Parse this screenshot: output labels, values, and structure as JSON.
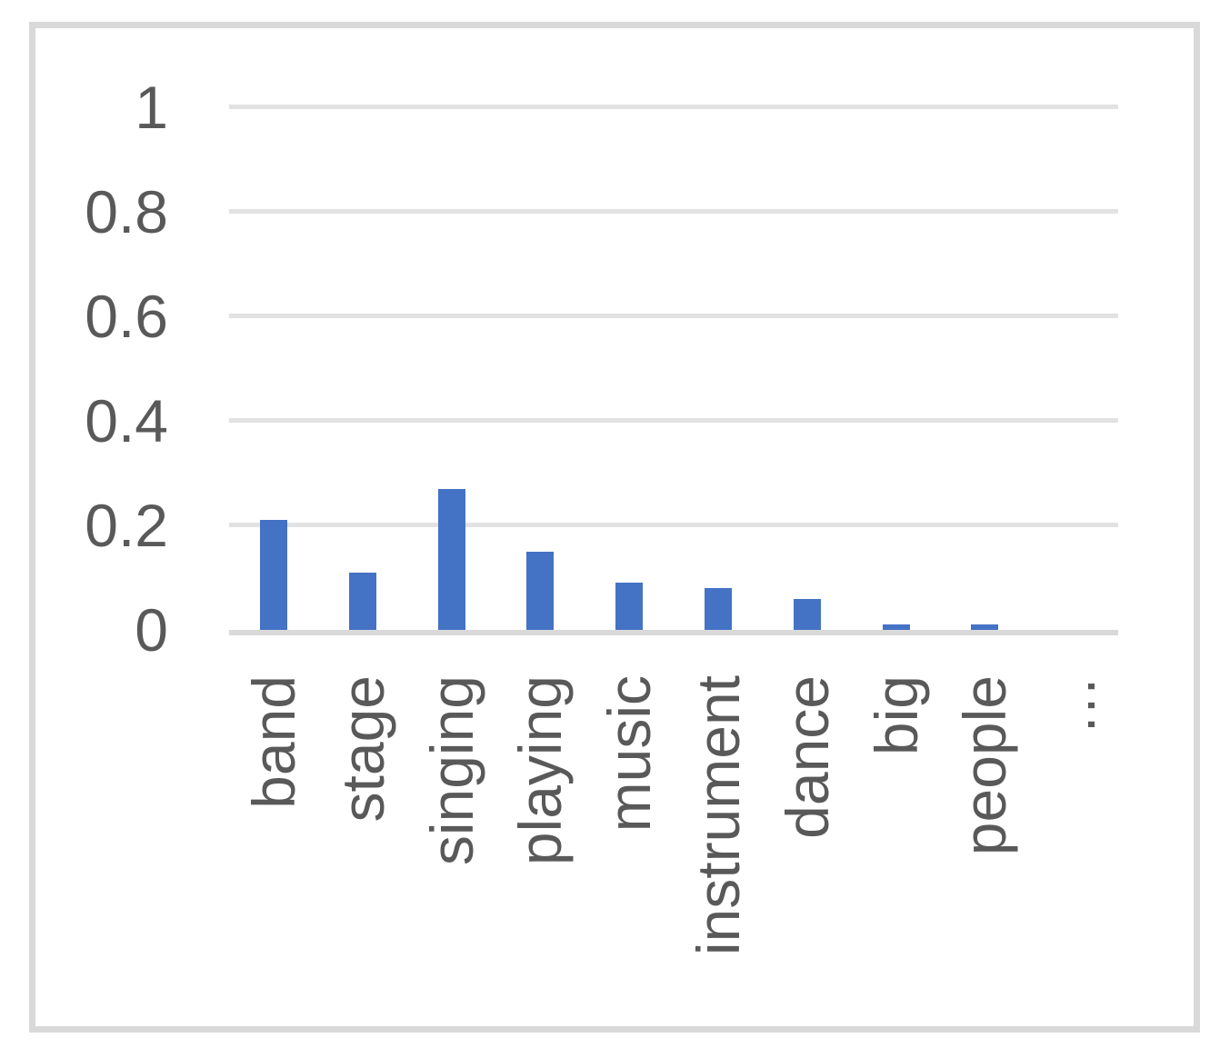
{
  "chart_data": {
    "type": "bar",
    "title": "",
    "xlabel": "",
    "ylabel": "",
    "categories": [
      "band",
      "stage",
      "singing",
      "playing",
      "music",
      "instrument",
      "dance",
      "big",
      "people",
      "…"
    ],
    "values": [
      0.21,
      0.11,
      0.27,
      0.15,
      0.09,
      0.08,
      0.06,
      0.01,
      0.01,
      0
    ],
    "ylim": [
      0,
      1
    ],
    "yticks": [
      0,
      0.2,
      0.4,
      0.6,
      0.8,
      1
    ],
    "ytick_labels": [
      "0",
      "0.2",
      "0.4",
      "0.6",
      "0.8",
      "1"
    ],
    "grid": true,
    "legend": false,
    "x_labels_rotated_degrees": 90,
    "bar_color": "#4472C4",
    "gridline_color": "#E2E2E2",
    "axis_line_color": "#D9D9D9",
    "label_color": "#595959",
    "frame_border_color": "#D9D9D9"
  }
}
